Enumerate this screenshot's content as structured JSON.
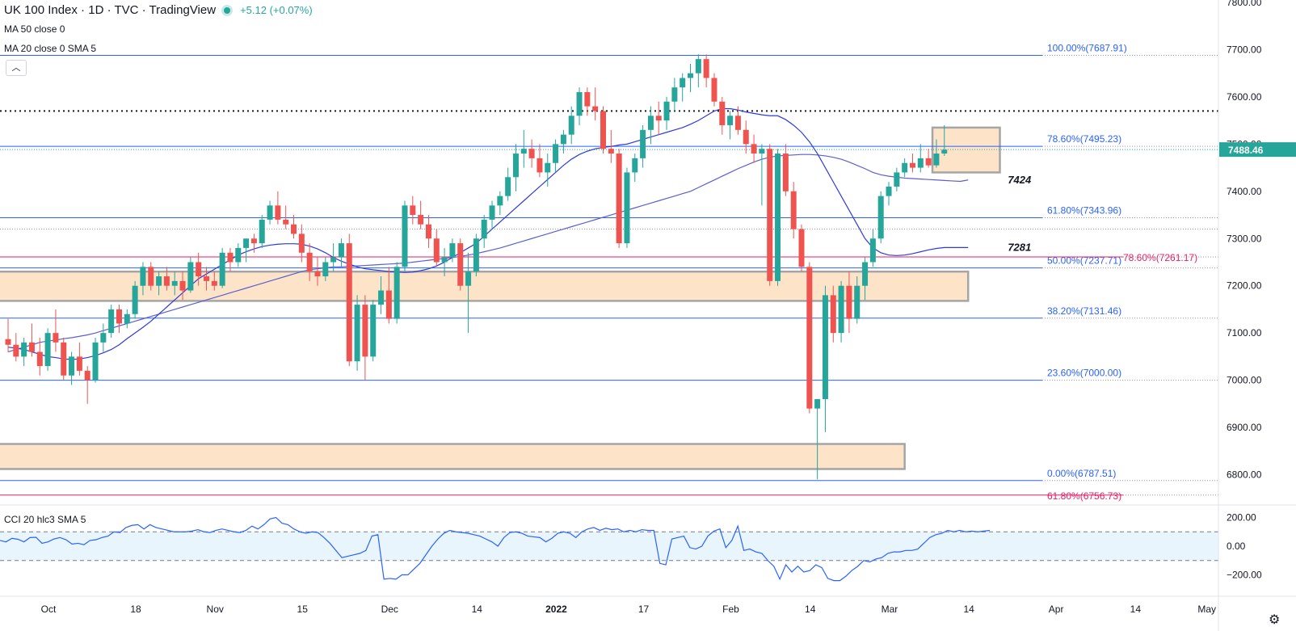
{
  "header": {
    "title": "UK 100 Index · 1D · TVC · TradingView",
    "change": "+5.12 (+0.07%)",
    "ma1": "MA 50 close 0",
    "ma2": "MA 20 close 0 SMA 5",
    "collapse_icon": "chevron-up-icon"
  },
  "cci": {
    "title": "CCI 20 hlc3 SMA 5",
    "ticks": [
      {
        "v": 200,
        "label": "200.00"
      },
      {
        "v": 0,
        "label": "0.00"
      },
      {
        "v": -200,
        "label": "−200.00"
      }
    ],
    "band": [
      100,
      -100
    ],
    "series": [
      40,
      30,
      55,
      48,
      30,
      60,
      62,
      20,
      30,
      50,
      60,
      45,
      15,
      20,
      10,
      40,
      45,
      60,
      70,
      100,
      95,
      130,
      145,
      150,
      120,
      150,
      130,
      120,
      110,
      100,
      100,
      100,
      105,
      115,
      100,
      95,
      110,
      120,
      110,
      100,
      95,
      110,
      140,
      120,
      150,
      190,
      200,
      160,
      150,
      120,
      100,
      90,
      100,
      95,
      60,
      20,
      -30,
      -80,
      -70,
      -60,
      -50,
      -30,
      70,
      80,
      -230,
      -225,
      -230,
      -200,
      -200,
      -160,
      -120,
      -60,
      0,
      50,
      90,
      110,
      100,
      95,
      90,
      80,
      70,
      50,
      30,
      0,
      60,
      95,
      100,
      90,
      70,
      65,
      60,
      30,
      55,
      90,
      100,
      90,
      60,
      100,
      120,
      130,
      110,
      125,
      115,
      120,
      100,
      110,
      100,
      115,
      110,
      110,
      -120,
      -130,
      50,
      60,
      70,
      -10,
      -20,
      0,
      70,
      105,
      120,
      -10,
      40,
      140,
      -30,
      -20,
      -40,
      -50,
      -100,
      -140,
      -230,
      -130,
      -180,
      -140,
      -180,
      -170,
      -130,
      -150,
      -225,
      -240,
      -240,
      -210,
      -170,
      -140,
      -100,
      -110,
      -90,
      -80,
      -50,
      -40,
      -40,
      -30,
      -30,
      -20,
      20,
      60,
      80,
      90,
      110,
      100,
      110,
      100,
      105,
      100,
      105,
      110
    ],
    "color": "#2962ff"
  },
  "chart_data": {
    "type": "candlestick",
    "title": "UK 100 Index · 1D · TVC · TradingView",
    "price": {
      "last": 7488.46,
      "last_label": "7488.46",
      "color": "#26a69a"
    },
    "y_axis": {
      "min": 6700,
      "max": 7800,
      "ticks": [
        {
          "v": 7800,
          "label": "7800.00"
        },
        {
          "v": 7700,
          "label": "7700.00"
        },
        {
          "v": 7600,
          "label": "7600.00"
        },
        {
          "v": 7500,
          "label": "7500.00"
        },
        {
          "v": 7400,
          "label": "7400.00"
        },
        {
          "v": 7300,
          "label": "7300.00"
        },
        {
          "v": 7200,
          "label": "7200.00"
        },
        {
          "v": 7100,
          "label": "7100.00"
        },
        {
          "v": 7000,
          "label": "7000.00"
        },
        {
          "v": 6900,
          "label": "6900.00"
        },
        {
          "v": 6800,
          "label": "6800.00"
        }
      ]
    },
    "x_axis": {
      "ticks": [
        {
          "i": 0,
          "label": "Oct",
          "bold": false
        },
        {
          "i": 11,
          "label": "18",
          "bold": false
        },
        {
          "i": 21,
          "label": "Nov",
          "bold": false
        },
        {
          "i": 32,
          "label": "15",
          "bold": false
        },
        {
          "i": 43,
          "label": "Dec",
          "bold": false
        },
        {
          "i": 54,
          "label": "14",
          "bold": false
        },
        {
          "i": 64,
          "label": "2022",
          "bold": true
        },
        {
          "i": 75,
          "label": "17",
          "bold": false
        },
        {
          "i": 86,
          "label": "Feb",
          "bold": false
        },
        {
          "i": 96,
          "label": "14",
          "bold": false
        },
        {
          "i": 106,
          "label": "Mar",
          "bold": false
        },
        {
          "i": 116,
          "label": "14",
          "bold": false
        },
        {
          "i": 127,
          "label": "Apr",
          "bold": false
        },
        {
          "i": 137,
          "label": "14",
          "bold": false
        },
        {
          "i": 146,
          "label": "May",
          "bold": false
        }
      ]
    },
    "fib_blue": [
      {
        "v": 7687.91,
        "label": "100.00%(7687.91)"
      },
      {
        "v": 7495.23,
        "label": "78.60%(7495.23)"
      },
      {
        "v": 7343.96,
        "label": "61.80%(7343.96)"
      },
      {
        "v": 7237.71,
        "label": "50.00%(7237.71)"
      },
      {
        "v": 7131.46,
        "label": "38.20%(7131.46)"
      },
      {
        "v": 7000.0,
        "label": "23.60%(7000.00)"
      },
      {
        "v": 6787.51,
        "label": "0.00%(6787.51)"
      }
    ],
    "fib_red": [
      {
        "v": 7261.17,
        "label": "78.60%(7261.17)"
      },
      {
        "v": 6756.73,
        "label": "61.80%(6756.73)"
      }
    ],
    "resistance_dotted": 7570,
    "last_price_dotted": 7488.46,
    "grey_dotted": 7320,
    "zones": [
      {
        "from_i": -1,
        "to_i": 121,
        "top": 7230,
        "bottom": 7168
      },
      {
        "from_i": -1,
        "to_i": 113,
        "top": 6865,
        "bottom": 6812
      },
      {
        "from_i": 116.5,
        "to_i": 125,
        "top": 7535,
        "bottom": 7440
      }
    ],
    "annotations": [
      {
        "i": 126,
        "v": 7424,
        "label": "7424"
      },
      {
        "i": 126,
        "v": 7281,
        "label": "7281"
      }
    ],
    "candles": [
      [
        7087,
        7130,
        7060,
        7075
      ],
      [
        7075,
        7100,
        7040,
        7050
      ],
      [
        7050,
        7090,
        7030,
        7080
      ],
      [
        7080,
        7120,
        7050,
        7060
      ],
      [
        7060,
        7090,
        7010,
        7030
      ],
      [
        7030,
        7110,
        7020,
        7100
      ],
      [
        7100,
        7150,
        7060,
        7080
      ],
      [
        7080,
        7090,
        7000,
        7010
      ],
      [
        7010,
        7060,
        6990,
        7050
      ],
      [
        7050,
        7080,
        7010,
        7020
      ],
      [
        7020,
        7030,
        6950,
        7000
      ],
      [
        7000,
        7090,
        6995,
        7080
      ],
      [
        7080,
        7120,
        7060,
        7100
      ],
      [
        7100,
        7160,
        7090,
        7150
      ],
      [
        7150,
        7160,
        7100,
        7120
      ],
      [
        7120,
        7150,
        7110,
        7140
      ],
      [
        7140,
        7210,
        7130,
        7200
      ],
      [
        7200,
        7250,
        7180,
        7240
      ],
      [
        7240,
        7250,
        7190,
        7200
      ],
      [
        7200,
        7230,
        7180,
        7220
      ],
      [
        7220,
        7240,
        7190,
        7200
      ],
      [
        7200,
        7230,
        7180,
        7210
      ],
      [
        7210,
        7230,
        7170,
        7190
      ],
      [
        7190,
        7260,
        7185,
        7250
      ],
      [
        7250,
        7270,
        7200,
        7220
      ],
      [
        7220,
        7240,
        7190,
        7210
      ],
      [
        7210,
        7230,
        7190,
        7200
      ],
      [
        7200,
        7280,
        7195,
        7270
      ],
      [
        7270,
        7280,
        7230,
        7250
      ],
      [
        7250,
        7290,
        7240,
        7280
      ],
      [
        7280,
        7300,
        7250,
        7300
      ],
      [
        7300,
        7310,
        7270,
        7290
      ],
      [
        7290,
        7350,
        7280,
        7340
      ],
      [
        7340,
        7380,
        7330,
        7370
      ],
      [
        7370,
        7400,
        7330,
        7340
      ],
      [
        7340,
        7370,
        7320,
        7330
      ],
      [
        7330,
        7350,
        7300,
        7310
      ],
      [
        7310,
        7330,
        7250,
        7270
      ],
      [
        7270,
        7290,
        7210,
        7230
      ],
      [
        7230,
        7260,
        7200,
        7220
      ],
      [
        7220,
        7260,
        7210,
        7250
      ],
      [
        7250,
        7290,
        7230,
        7260
      ],
      [
        7260,
        7300,
        7240,
        7290
      ],
      [
        7290,
        7310,
        7030,
        7040
      ],
      [
        7040,
        7180,
        7020,
        7160
      ],
      [
        7160,
        7180,
        7000,
        7050
      ],
      [
        7050,
        7170,
        7040,
        7160
      ],
      [
        7160,
        7220,
        7140,
        7190
      ],
      [
        7190,
        7240,
        7120,
        7130
      ],
      [
        7130,
        7250,
        7120,
        7240
      ],
      [
        7240,
        7380,
        7230,
        7370
      ],
      [
        7370,
        7390,
        7330,
        7350
      ],
      [
        7350,
        7380,
        7320,
        7330
      ],
      [
        7330,
        7350,
        7280,
        7300
      ],
      [
        7300,
        7320,
        7240,
        7250
      ],
      [
        7250,
        7280,
        7220,
        7260
      ],
      [
        7260,
        7300,
        7250,
        7290
      ],
      [
        7290,
        7300,
        7190,
        7200
      ],
      [
        7200,
        7270,
        7100,
        7230
      ],
      [
        7230,
        7310,
        7220,
        7300
      ],
      [
        7300,
        7350,
        7280,
        7340
      ],
      [
        7340,
        7380,
        7320,
        7370
      ],
      [
        7370,
        7400,
        7350,
        7390
      ],
      [
        7390,
        7450,
        7380,
        7430
      ],
      [
        7430,
        7500,
        7400,
        7480
      ],
      [
        7480,
        7530,
        7450,
        7490
      ],
      [
        7490,
        7510,
        7450,
        7470
      ],
      [
        7470,
        7500,
        7430,
        7440
      ],
      [
        7440,
        7480,
        7410,
        7460
      ],
      [
        7460,
        7510,
        7440,
        7500
      ],
      [
        7500,
        7530,
        7480,
        7520
      ],
      [
        7520,
        7580,
        7500,
        7560
      ],
      [
        7560,
        7620,
        7540,
        7610
      ],
      [
        7610,
        7620,
        7560,
        7580
      ],
      [
        7580,
        7620,
        7550,
        7570
      ],
      [
        7570,
        7580,
        7480,
        7490
      ],
      [
        7490,
        7530,
        7460,
        7480
      ],
      [
        7480,
        7490,
        7280,
        7290
      ],
      [
        7290,
        7450,
        7280,
        7440
      ],
      [
        7440,
        7480,
        7420,
        7470
      ],
      [
        7470,
        7540,
        7450,
        7530
      ],
      [
        7530,
        7580,
        7500,
        7560
      ],
      [
        7560,
        7590,
        7520,
        7550
      ],
      [
        7550,
        7600,
        7530,
        7590
      ],
      [
        7590,
        7640,
        7570,
        7620
      ],
      [
        7620,
        7650,
        7590,
        7640
      ],
      [
        7640,
        7670,
        7610,
        7650
      ],
      [
        7650,
        7690,
        7620,
        7680
      ],
      [
        7680,
        7690,
        7620,
        7640
      ],
      [
        7640,
        7650,
        7580,
        7590
      ],
      [
        7590,
        7600,
        7520,
        7540
      ],
      [
        7540,
        7570,
        7510,
        7560
      ],
      [
        7560,
        7580,
        7520,
        7530
      ],
      [
        7530,
        7550,
        7480,
        7500
      ],
      [
        7500,
        7520,
        7460,
        7480
      ],
      [
        7480,
        7500,
        7370,
        7490
      ],
      [
        7490,
        7500,
        7200,
        7210
      ],
      [
        7210,
        7490,
        7200,
        7480
      ],
      [
        7480,
        7500,
        7390,
        7400
      ],
      [
        7400,
        7420,
        7300,
        7320
      ],
      [
        7320,
        7330,
        7230,
        7240
      ],
      [
        7240,
        7250,
        6930,
        6940
      ],
      [
        6940,
        6960,
        6790,
        6960
      ],
      [
        6960,
        7200,
        6890,
        7180
      ],
      [
        7180,
        7200,
        7080,
        7100
      ],
      [
        7100,
        7210,
        7080,
        7200
      ],
      [
        7200,
        7230,
        7100,
        7130
      ],
      [
        7130,
        7220,
        7120,
        7200
      ],
      [
        7200,
        7260,
        7170,
        7250
      ],
      [
        7250,
        7320,
        7240,
        7300
      ],
      [
        7300,
        7400,
        7290,
        7390
      ],
      [
        7390,
        7420,
        7370,
        7410
      ],
      [
        7410,
        7450,
        7400,
        7440
      ],
      [
        7440,
        7470,
        7430,
        7460
      ],
      [
        7460,
        7480,
        7440,
        7450
      ],
      [
        7450,
        7500,
        7440,
        7470
      ],
      [
        7470,
        7490,
        7450,
        7455
      ],
      [
        7455,
        7510,
        7450,
        7480
      ],
      [
        7480,
        7540,
        7475,
        7488
      ]
    ],
    "ma50": {
      "color": "#5b5fd1",
      "values": [
        7060,
        7065,
        7070,
        7075,
        7080,
        7083,
        7085,
        7088,
        7090,
        7093,
        7096,
        7100,
        7105,
        7110,
        7115,
        7120,
        7125,
        7130,
        7135,
        7140,
        7145,
        7150,
        7155,
        7160,
        7165,
        7170,
        7175,
        7180,
        7185,
        7190,
        7195,
        7200,
        7205,
        7210,
        7215,
        7220,
        7225,
        7230,
        7234,
        7236,
        7238,
        7240,
        7240,
        7241,
        7242,
        7243,
        7244,
        7245,
        7246,
        7247,
        7248,
        7250,
        7252,
        7254,
        7256,
        7258,
        7260,
        7262,
        7265,
        7268,
        7272,
        7276,
        7280,
        7285,
        7290,
        7295,
        7300,
        7305,
        7310,
        7315,
        7320,
        7325,
        7330,
        7335,
        7340,
        7345,
        7350,
        7355,
        7360,
        7365,
        7370,
        7375,
        7380,
        7385,
        7390,
        7395,
        7400,
        7408,
        7416,
        7424,
        7432,
        7440,
        7448,
        7455,
        7462,
        7468,
        7472,
        7475,
        7476,
        7477,
        7478,
        7478,
        7477,
        7475,
        7472,
        7468,
        7462,
        7455,
        7448,
        7440,
        7435,
        7432,
        7430,
        7428,
        7427,
        7426,
        7425,
        7424,
        7423,
        7422,
        7421,
        7424
      ]
    },
    "ma20": {
      "color": "#2e3bd9",
      "values": [
        7070,
        7068,
        7065,
        7060,
        7055,
        7050,
        7048,
        7045,
        7044,
        7045,
        7048,
        7052,
        7058,
        7065,
        7075,
        7088,
        7100,
        7112,
        7125,
        7140,
        7155,
        7170,
        7185,
        7200,
        7215,
        7225,
        7235,
        7245,
        7255,
        7265,
        7272,
        7278,
        7283,
        7286,
        7288,
        7289,
        7289,
        7288,
        7284,
        7278,
        7270,
        7260,
        7252,
        7246,
        7240,
        7236,
        7234,
        7232,
        7230,
        7229,
        7228,
        7229,
        7232,
        7236,
        7242,
        7250,
        7260,
        7270,
        7280,
        7290,
        7305,
        7320,
        7335,
        7350,
        7365,
        7380,
        7395,
        7410,
        7425,
        7440,
        7455,
        7468,
        7478,
        7485,
        7490,
        7493,
        7495,
        7498,
        7500,
        7505,
        7510,
        7515,
        7520,
        7525,
        7530,
        7535,
        7542,
        7550,
        7560,
        7570,
        7575,
        7575,
        7572,
        7568,
        7565,
        7562,
        7560,
        7560,
        7552,
        7540,
        7525,
        7505,
        7480,
        7450,
        7420,
        7390,
        7360,
        7330,
        7300,
        7280,
        7270,
        7265,
        7264,
        7265,
        7268,
        7272,
        7276,
        7279,
        7281,
        7281,
        7281,
        7281
      ]
    }
  }
}
